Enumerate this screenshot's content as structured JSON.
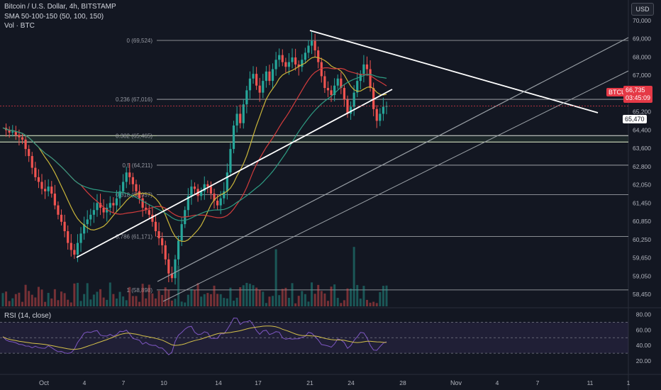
{
  "header": {
    "symbol_line": "Bitcoin / U.S. Dollar, 4h, BITSTAMP",
    "sma_line": "SMA 50-100-150 (50, 100, 150)",
    "vol_line": "Vol · BTC",
    "rsi_line": "RSI (14, close)",
    "currency": "USD"
  },
  "price_tags": {
    "symbol": "BTCUSD",
    "last_price": "66,735",
    "countdown": "03:45:09",
    "level": "65,470"
  },
  "colors": {
    "background": "#131722",
    "up_candle": "#26a69a",
    "down_candle": "#ef5350",
    "sma50": "#c9b53a",
    "sma100": "#d23c3c",
    "sma150": "#2e9c83",
    "rsi": "#7e57c2",
    "rsi_ma": "#d4c04a",
    "trendline": "#ffffff",
    "channel": "#9aa0a6"
  },
  "chart_data": {
    "type": "candlestick",
    "timeframe": "4h",
    "x_tick_labels": [
      "Oct",
      "4",
      "7",
      "10",
      "14",
      "17",
      "21",
      "24",
      "28",
      "Nov",
      "4",
      "7",
      "11",
      "1"
    ],
    "price_axis_labels": [
      "70,000",
      "69,000",
      "68,000",
      "67,000",
      "66,000",
      "65,200",
      "64,400",
      "63,600",
      "62,800",
      "62,050",
      "61,450",
      "60,850",
      "60,250",
      "59,650",
      "59,050",
      "58,450"
    ],
    "price_range": [
      58200,
      70400
    ],
    "fibonacci_levels": [
      {
        "label": "0 (69,524)",
        "price": 69524
      },
      {
        "label": "0.236 (67,016)",
        "price": 67016
      },
      {
        "label": "0.382 (65,465)",
        "price": 65465
      },
      {
        "label": "0.5 (64,211)",
        "price": 64211
      },
      {
        "label": "0.618 (62,957)",
        "price": 62957
      },
      {
        "label": "0.786 (61,171)",
        "price": 61171
      },
      {
        "label": "1 (58,898)",
        "price": 58898
      }
    ],
    "support_zone": [
      65200,
      65470
    ],
    "close_series": [
      65800,
      65700,
      65600,
      65650,
      65500,
      65400,
      65300,
      64900,
      64600,
      64100,
      63700,
      63500,
      63200,
      63100,
      63300,
      63000,
      62500,
      62100,
      61800,
      61400,
      60900,
      60600,
      60400,
      60900,
      61300,
      61700,
      61900,
      62100,
      62300,
      62600,
      62400,
      62200,
      62400,
      62600,
      62500,
      62800,
      63100,
      63500,
      63900,
      63700,
      63400,
      63100,
      62800,
      62400,
      62300,
      62100,
      61800,
      61400,
      61100,
      60800,
      60200,
      59600,
      59400,
      60200,
      61000,
      61700,
      62300,
      62900,
      63300,
      63200,
      62900,
      63100,
      63400,
      63300,
      63000,
      62700,
      62500,
      62800,
      63100,
      63900,
      64900,
      65900,
      66400,
      66000,
      66800,
      67400,
      67900,
      68100,
      67600,
      67300,
      67800,
      68200,
      67800,
      68300,
      68700,
      68900,
      68600,
      68400,
      68600,
      68800,
      68500,
      68400,
      68700,
      69000,
      69300,
      69500,
      69100,
      68600,
      68000,
      67500,
      67400,
      67200,
      67600,
      67900,
      67500,
      67000,
      66400,
      66700,
      67300,
      67800,
      68100,
      68500,
      68300,
      67500,
      66600,
      66100,
      66400,
      66700,
      66735
    ],
    "rsi_axis_labels": [
      "80.00",
      "60.00",
      "40.00",
      "20.00"
    ],
    "rsi_bands": [
      70,
      50,
      30
    ]
  }
}
